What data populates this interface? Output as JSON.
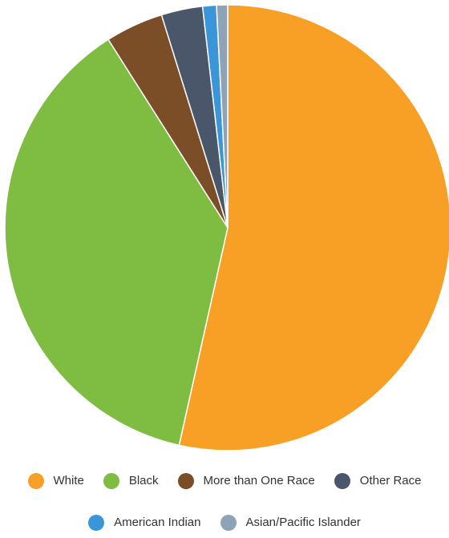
{
  "chart_data": {
    "type": "pie",
    "title": "",
    "legend_position": "bottom",
    "series": [
      {
        "name": "White",
        "value": 53.5,
        "color": "#F89F26"
      },
      {
        "name": "Black",
        "value": 37.5,
        "color": "#7EBD42"
      },
      {
        "name": "More than One Race",
        "value": 4.2,
        "color": "#7B4E28"
      },
      {
        "name": "Other Race",
        "value": 3.0,
        "color": "#4A5669"
      },
      {
        "name": "American Indian",
        "value": 1.0,
        "color": "#3A96D9"
      },
      {
        "name": "Asian/Pacific Islander",
        "value": 0.8,
        "color": "#8FA3B7"
      }
    ]
  }
}
